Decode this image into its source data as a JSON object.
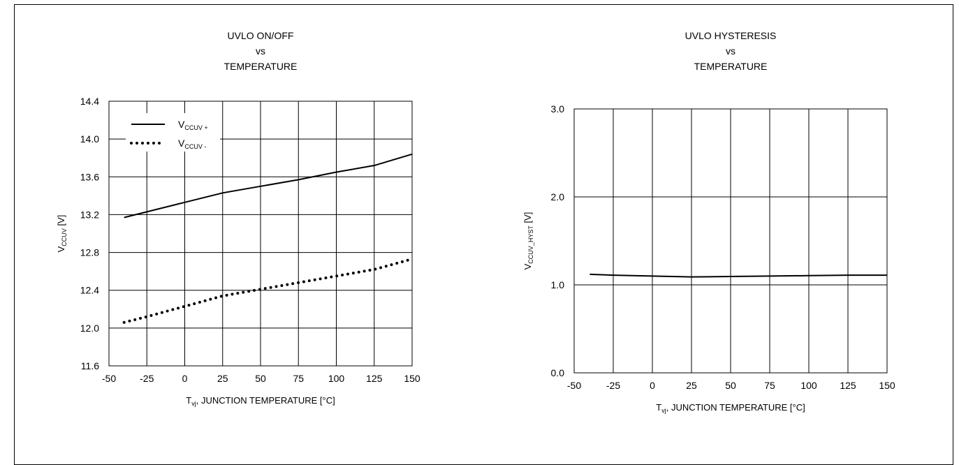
{
  "chart_data": [
    {
      "type": "line",
      "title_lines": [
        "UVLO ON/OFF",
        "vs",
        "TEMPERATURE"
      ],
      "ylabel": {
        "main": "V",
        "sub": "CCUV",
        "unit": "[V]"
      },
      "xlabel": {
        "main": "T",
        "sub": "vj",
        "rest": ", JUNCTION TEMPERATURE  [°C]"
      },
      "xlim": [
        -50,
        150
      ],
      "ylim": [
        11.6,
        14.4
      ],
      "xticks": [
        -50,
        -25,
        0,
        25,
        50,
        75,
        100,
        125,
        150
      ],
      "xtick_labels": [
        "-50",
        "-25",
        "0",
        "25",
        "50",
        "75",
        "100",
        "125",
        "150"
      ],
      "yticks": [
        11.6,
        12.0,
        12.4,
        12.8,
        13.2,
        13.6,
        14.0,
        14.4
      ],
      "ytick_labels": [
        "11.6",
        "12.0",
        "12.4",
        "12.8",
        "13.2",
        "13.6",
        "14.0",
        "14.4"
      ],
      "grid": true,
      "legend_position": "top-left",
      "series": [
        {
          "name": "V CCUV +",
          "legend_main": "V",
          "legend_sub": "CCUV +",
          "style": "solid",
          "x": [
            -40,
            -25,
            0,
            25,
            50,
            75,
            100,
            125,
            150
          ],
          "values": [
            13.17,
            13.23,
            13.33,
            13.43,
            13.5,
            13.57,
            13.65,
            13.72,
            13.84
          ]
        },
        {
          "name": "V CCUV -",
          "legend_main": "V",
          "legend_sub": "CCUV -",
          "style": "dotted",
          "x": [
            -40,
            -25,
            0,
            25,
            50,
            75,
            100,
            125,
            150
          ],
          "values": [
            12.06,
            12.12,
            12.23,
            12.34,
            12.41,
            12.48,
            12.55,
            12.62,
            12.73
          ]
        }
      ]
    },
    {
      "type": "line",
      "title_lines": [
        "UVLO HYSTERESIS",
        "vs",
        "TEMPERATURE"
      ],
      "ylabel": {
        "main": "V",
        "sub": "CCUV_HYST",
        "unit": "[V]"
      },
      "xlabel": {
        "main": "T",
        "sub": "vj",
        "rest": ", JUNCTION TEMPERATURE  [°C]"
      },
      "xlim": [
        -50,
        150
      ],
      "ylim": [
        0,
        3
      ],
      "xticks": [
        -50,
        -25,
        0,
        25,
        50,
        75,
        100,
        125,
        150
      ],
      "xtick_labels": [
        "-50",
        "-25",
        "0",
        "25",
        "50",
        "75",
        "100",
        "125",
        "150"
      ],
      "yticks": [
        0,
        1,
        2,
        3
      ],
      "ytick_labels": [
        "0.0",
        "1.0",
        "2.0",
        "3.0"
      ],
      "grid": true,
      "series": [
        {
          "style": "solid",
          "x": [
            -40,
            -25,
            0,
            25,
            50,
            75,
            100,
            125,
            150
          ],
          "values": [
            1.12,
            1.11,
            1.1,
            1.09,
            1.095,
            1.1,
            1.105,
            1.11,
            1.11
          ]
        }
      ]
    }
  ]
}
